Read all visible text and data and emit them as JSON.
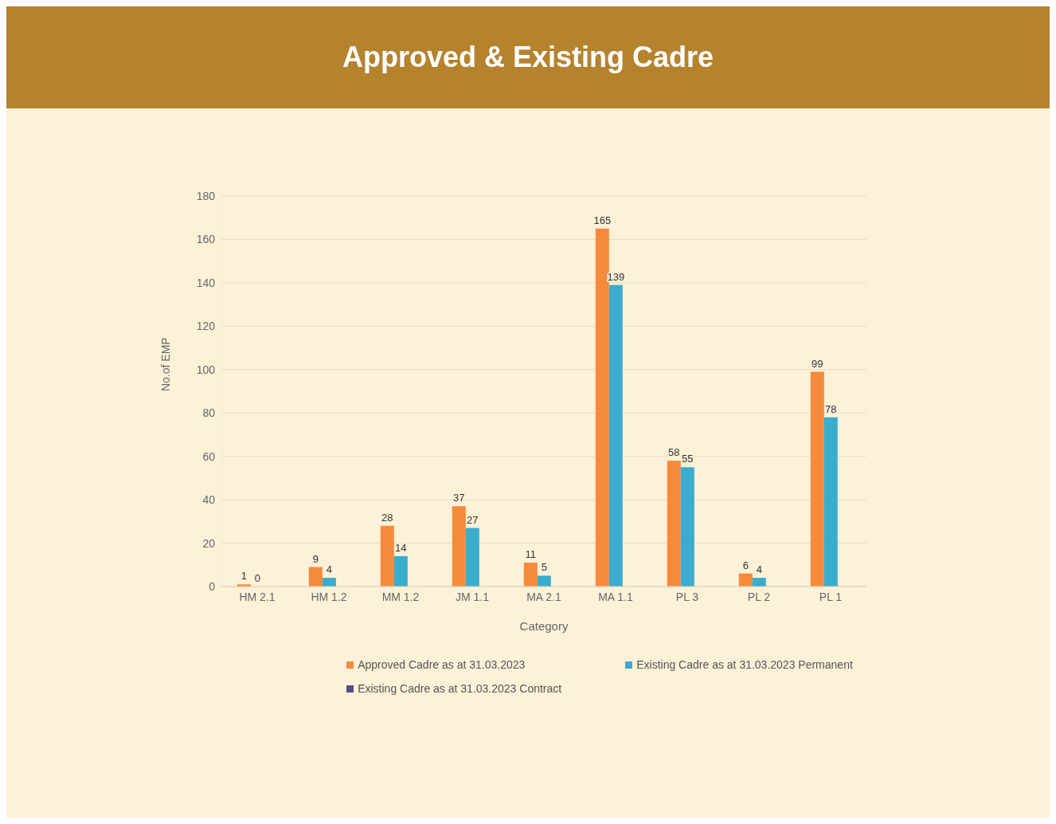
{
  "chart_data": {
    "type": "bar",
    "title": "Approved & Existing  Cadre",
    "xlabel": "Category",
    "ylabel": "No.of EMP",
    "categories": [
      "HM 2.1",
      "HM 1.2",
      "MM 1.2",
      "JM 1.1",
      "MA 2.1",
      "MA 1.1",
      "PL 3",
      "PL 2",
      "PL 1"
    ],
    "series": [
      {
        "name": "Approved Cadre as at 31.03.2023",
        "color": "#f58a3c",
        "values": [
          1,
          9,
          28,
          37,
          11,
          165,
          58,
          6,
          99
        ]
      },
      {
        "name": "Existing Cadre as at 31.03.2023 Permanent",
        "color": "#3aaccc",
        "values": [
          0,
          4,
          14,
          27,
          5,
          139,
          55,
          4,
          78
        ]
      },
      {
        "name": "Existing Cadre as at 31.03.2023 Contract",
        "color": "#5b4a8c",
        "values": [
          null,
          null,
          null,
          null,
          null,
          null,
          null,
          null,
          null
        ]
      }
    ],
    "ylim": [
      0,
      180
    ],
    "yticks": [
      0,
      20,
      40,
      60,
      80,
      100,
      120,
      140,
      160,
      180
    ],
    "grid": "y",
    "legend": "bottom",
    "data_labels": true
  }
}
